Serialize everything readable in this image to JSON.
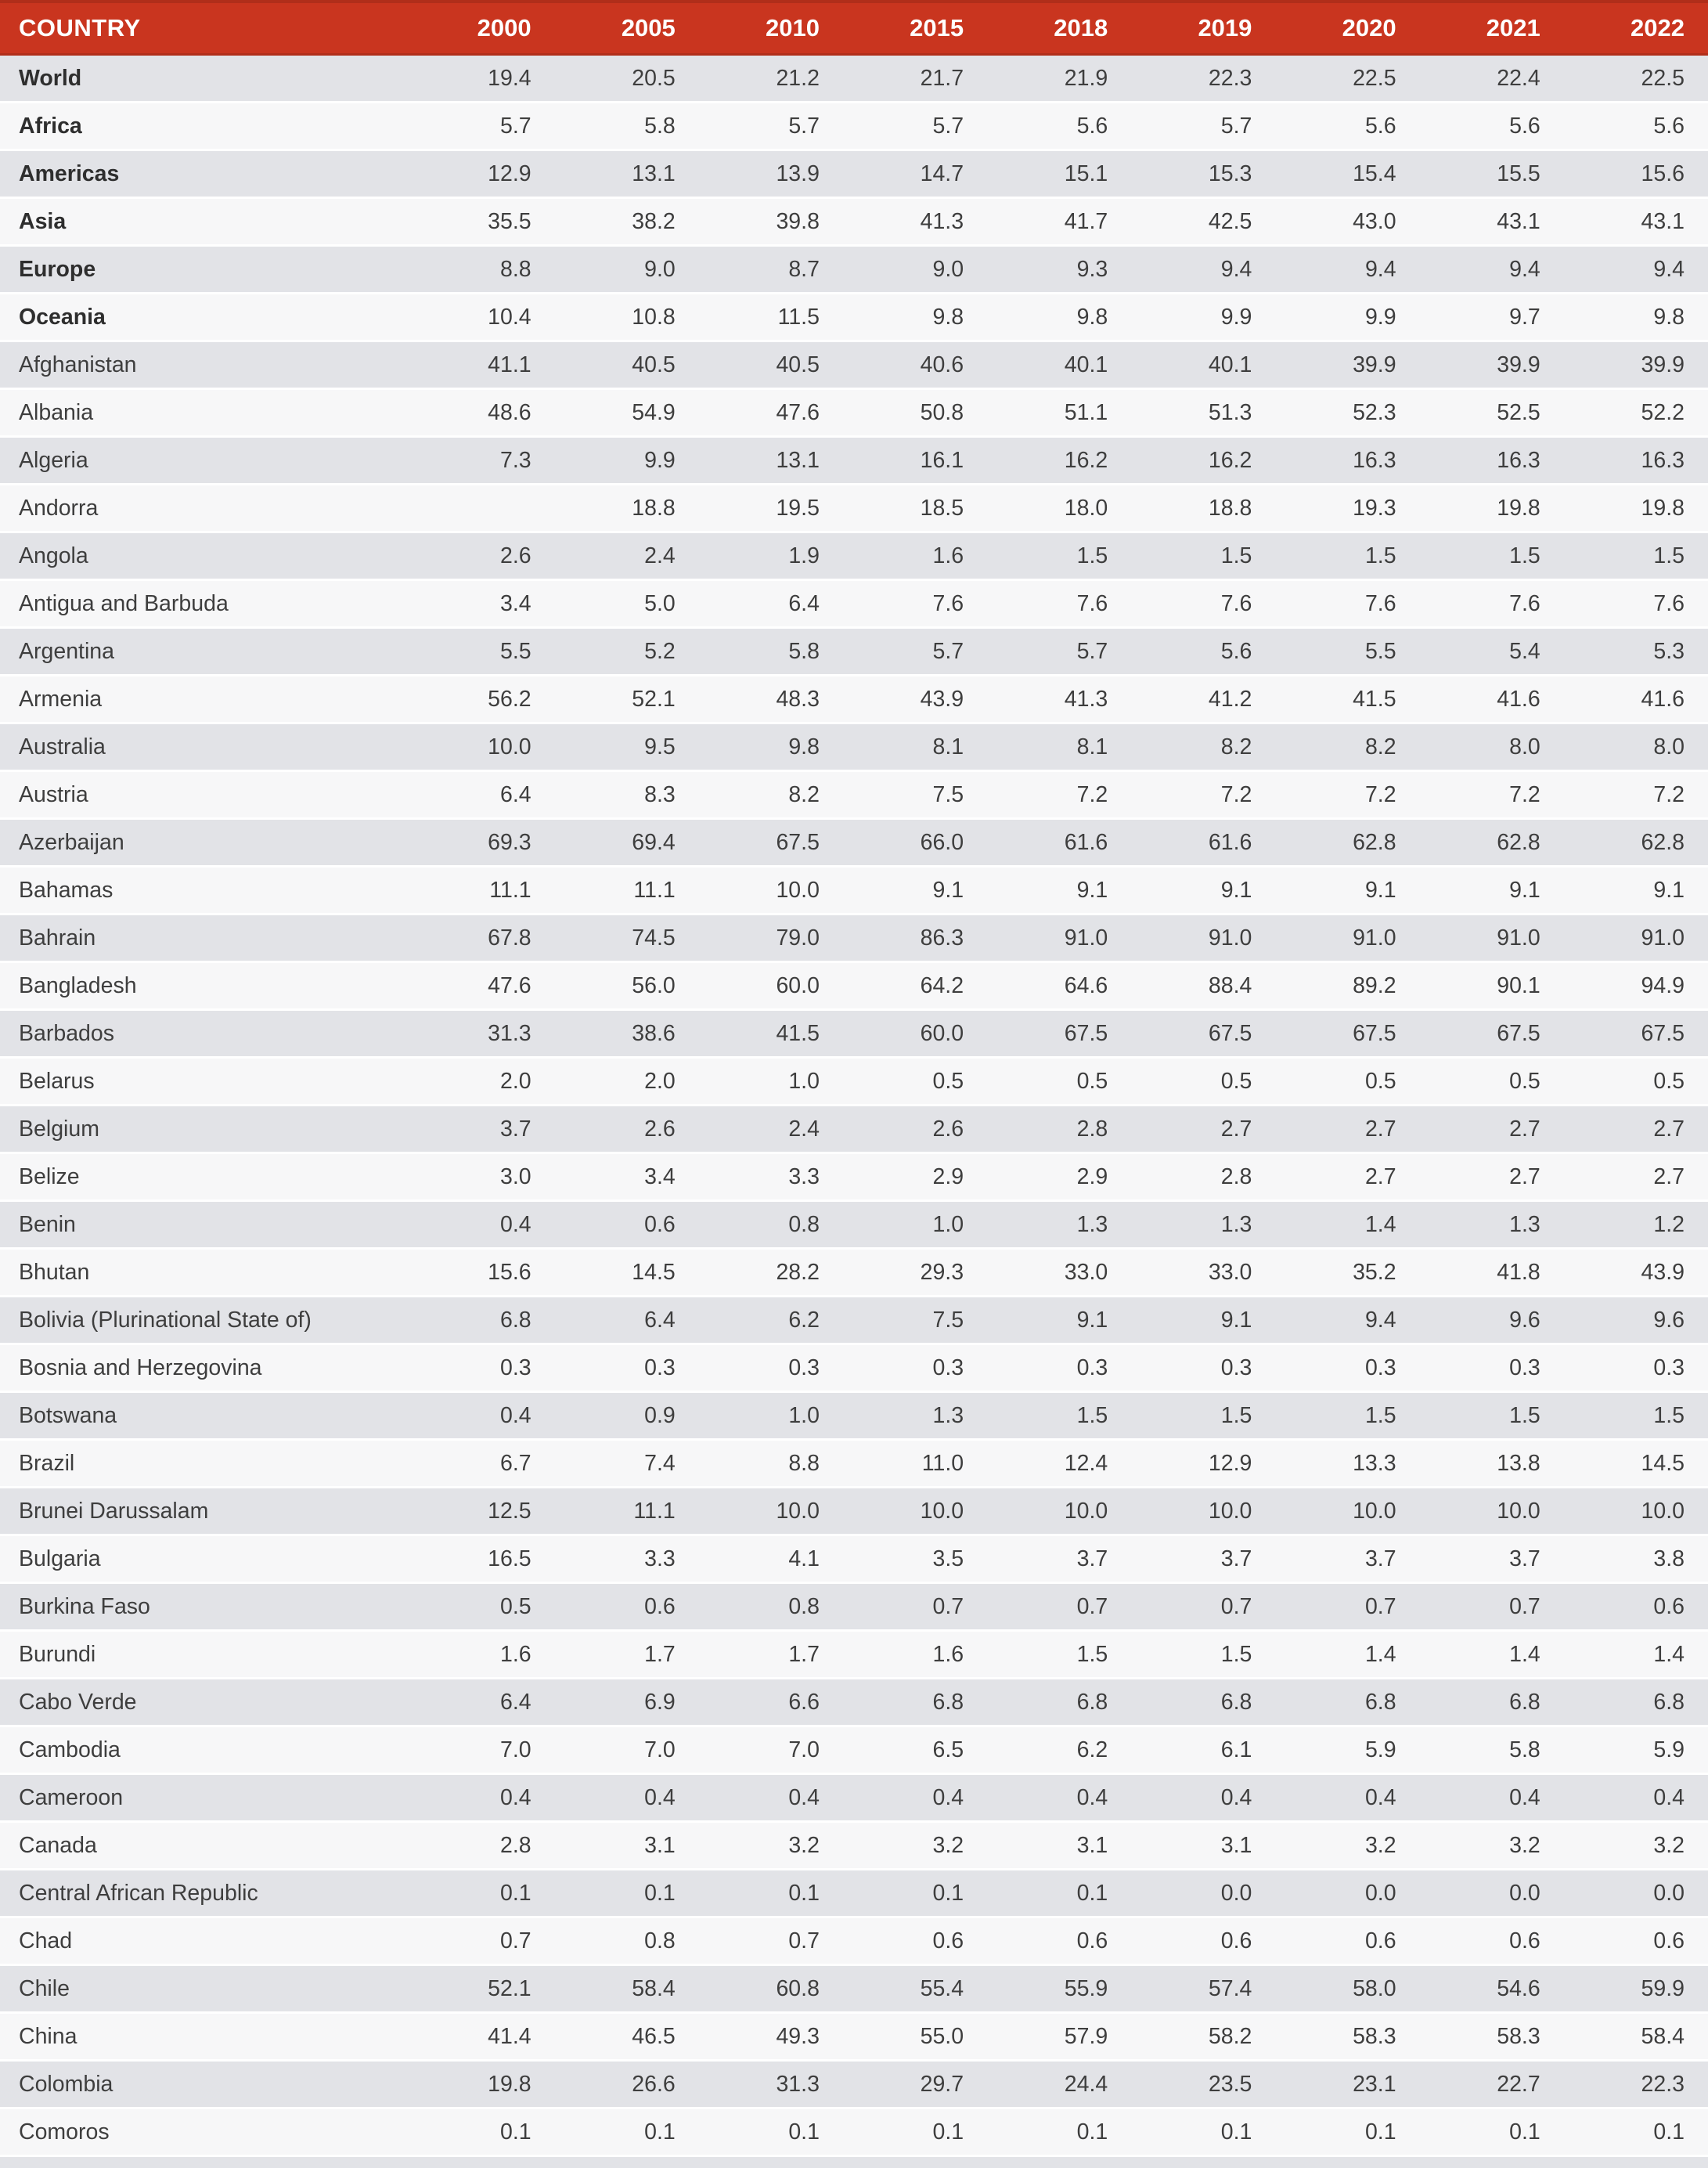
{
  "colors": {
    "header_background": "#C9351F",
    "header_border": "#B02E1A",
    "header_text": "#FFFFFF",
    "row_stripe_dark": "#E2E3E7",
    "row_stripe_light": "#F7F7F8",
    "body_text": "#3E3E3E"
  },
  "table": {
    "country_label": "COUNTRY",
    "years": [
      "2000",
      "2005",
      "2010",
      "2015",
      "2018",
      "2019",
      "2020",
      "2021",
      "2022"
    ],
    "rows": [
      {
        "name": "World",
        "bold": true,
        "values": [
          "19.4",
          "20.5",
          "21.2",
          "21.7",
          "21.9",
          "22.3",
          "22.5",
          "22.4",
          "22.5"
        ]
      },
      {
        "name": "Africa",
        "bold": true,
        "values": [
          "5.7",
          "5.8",
          "5.7",
          "5.7",
          "5.6",
          "5.7",
          "5.6",
          "5.6",
          "5.6"
        ]
      },
      {
        "name": "Americas",
        "bold": true,
        "values": [
          "12.9",
          "13.1",
          "13.9",
          "14.7",
          "15.1",
          "15.3",
          "15.4",
          "15.5",
          "15.6"
        ]
      },
      {
        "name": "Asia",
        "bold": true,
        "values": [
          "35.5",
          "38.2",
          "39.8",
          "41.3",
          "41.7",
          "42.5",
          "43.0",
          "43.1",
          "43.1"
        ]
      },
      {
        "name": "Europe",
        "bold": true,
        "values": [
          "8.8",
          "9.0",
          "8.7",
          "9.0",
          "9.3",
          "9.4",
          "9.4",
          "9.4",
          "9.4"
        ]
      },
      {
        "name": "Oceania",
        "bold": true,
        "values": [
          "10.4",
          "10.8",
          "11.5",
          "9.8",
          "9.8",
          "9.9",
          "9.9",
          "9.7",
          "9.8"
        ]
      },
      {
        "name": "Afghanistan",
        "bold": false,
        "values": [
          "41.1",
          "40.5",
          "40.5",
          "40.6",
          "40.1",
          "40.1",
          "39.9",
          "39.9",
          "39.9"
        ]
      },
      {
        "name": "Albania",
        "bold": false,
        "values": [
          "48.6",
          "54.9",
          "47.6",
          "50.8",
          "51.1",
          "51.3",
          "52.3",
          "52.5",
          "52.2"
        ]
      },
      {
        "name": "Algeria",
        "bold": false,
        "values": [
          "7.3",
          "9.9",
          "13.1",
          "16.1",
          "16.2",
          "16.2",
          "16.3",
          "16.3",
          "16.3"
        ]
      },
      {
        "name": "Andorra",
        "bold": false,
        "values": [
          "",
          "18.8",
          "19.5",
          "18.5",
          "18.0",
          "18.8",
          "19.3",
          "19.8",
          "19.8"
        ]
      },
      {
        "name": "Angola",
        "bold": false,
        "values": [
          "2.6",
          "2.4",
          "1.9",
          "1.6",
          "1.5",
          "1.5",
          "1.5",
          "1.5",
          "1.5"
        ]
      },
      {
        "name": "Antigua and Barbuda",
        "bold": false,
        "values": [
          "3.4",
          "5.0",
          "6.4",
          "7.6",
          "7.6",
          "7.6",
          "7.6",
          "7.6",
          "7.6"
        ]
      },
      {
        "name": "Argentina",
        "bold": false,
        "values": [
          "5.5",
          "5.2",
          "5.8",
          "5.7",
          "5.7",
          "5.6",
          "5.5",
          "5.4",
          "5.3"
        ]
      },
      {
        "name": "Armenia",
        "bold": false,
        "values": [
          "56.2",
          "52.1",
          "48.3",
          "43.9",
          "41.3",
          "41.2",
          "41.5",
          "41.6",
          "41.6"
        ]
      },
      {
        "name": "Australia",
        "bold": false,
        "values": [
          "10.0",
          "9.5",
          "9.8",
          "8.1",
          "8.1",
          "8.2",
          "8.2",
          "8.0",
          "8.0"
        ]
      },
      {
        "name": "Austria",
        "bold": false,
        "values": [
          "6.4",
          "8.3",
          "8.2",
          "7.5",
          "7.2",
          "7.2",
          "7.2",
          "7.2",
          "7.2"
        ]
      },
      {
        "name": "Azerbaijan",
        "bold": false,
        "values": [
          "69.3",
          "69.4",
          "67.5",
          "66.0",
          "61.6",
          "61.6",
          "62.8",
          "62.8",
          "62.8"
        ]
      },
      {
        "name": "Bahamas",
        "bold": false,
        "values": [
          "11.1",
          "11.1",
          "10.0",
          "9.1",
          "9.1",
          "9.1",
          "9.1",
          "9.1",
          "9.1"
        ]
      },
      {
        "name": "Bahrain",
        "bold": false,
        "values": [
          "67.8",
          "74.5",
          "79.0",
          "86.3",
          "91.0",
          "91.0",
          "91.0",
          "91.0",
          "91.0"
        ]
      },
      {
        "name": "Bangladesh",
        "bold": false,
        "values": [
          "47.6",
          "56.0",
          "60.0",
          "64.2",
          "64.6",
          "88.4",
          "89.2",
          "90.1",
          "94.9"
        ]
      },
      {
        "name": "Barbados",
        "bold": false,
        "values": [
          "31.3",
          "38.6",
          "41.5",
          "60.0",
          "67.5",
          "67.5",
          "67.5",
          "67.5",
          "67.5"
        ]
      },
      {
        "name": "Belarus",
        "bold": false,
        "values": [
          "2.0",
          "2.0",
          "1.0",
          "0.5",
          "0.5",
          "0.5",
          "0.5",
          "0.5",
          "0.5"
        ]
      },
      {
        "name": "Belgium",
        "bold": false,
        "values": [
          "3.7",
          "2.6",
          "2.4",
          "2.6",
          "2.8",
          "2.7",
          "2.7",
          "2.7",
          "2.7"
        ]
      },
      {
        "name": "Belize",
        "bold": false,
        "values": [
          "3.0",
          "3.4",
          "3.3",
          "2.9",
          "2.9",
          "2.8",
          "2.7",
          "2.7",
          "2.7"
        ]
      },
      {
        "name": "Benin",
        "bold": false,
        "values": [
          "0.4",
          "0.6",
          "0.8",
          "1.0",
          "1.3",
          "1.3",
          "1.4",
          "1.3",
          "1.2"
        ]
      },
      {
        "name": "Bhutan",
        "bold": false,
        "values": [
          "15.6",
          "14.5",
          "28.2",
          "29.3",
          "33.0",
          "33.0",
          "35.2",
          "41.8",
          "43.9"
        ]
      },
      {
        "name": "Bolivia (Plurinational State of)",
        "bold": false,
        "values": [
          "6.8",
          "6.4",
          "6.2",
          "7.5",
          "9.1",
          "9.1",
          "9.4",
          "9.6",
          "9.6"
        ]
      },
      {
        "name": "Bosnia and Herzegovina",
        "bold": false,
        "values": [
          "0.3",
          "0.3",
          "0.3",
          "0.3",
          "0.3",
          "0.3",
          "0.3",
          "0.3",
          "0.3"
        ]
      },
      {
        "name": "Botswana",
        "bold": false,
        "values": [
          "0.4",
          "0.9",
          "1.0",
          "1.3",
          "1.5",
          "1.5",
          "1.5",
          "1.5",
          "1.5"
        ]
      },
      {
        "name": "Brazil",
        "bold": false,
        "values": [
          "6.7",
          "7.4",
          "8.8",
          "11.0",
          "12.4",
          "12.9",
          "13.3",
          "13.8",
          "14.5"
        ]
      },
      {
        "name": "Brunei Darussalam",
        "bold": false,
        "values": [
          "12.5",
          "11.1",
          "10.0",
          "10.0",
          "10.0",
          "10.0",
          "10.0",
          "10.0",
          "10.0"
        ]
      },
      {
        "name": "Bulgaria",
        "bold": false,
        "values": [
          "16.5",
          "3.3",
          "4.1",
          "3.5",
          "3.7",
          "3.7",
          "3.7",
          "3.7",
          "3.8"
        ]
      },
      {
        "name": "Burkina Faso",
        "bold": false,
        "values": [
          "0.5",
          "0.6",
          "0.8",
          "0.7",
          "0.7",
          "0.7",
          "0.7",
          "0.7",
          "0.6"
        ]
      },
      {
        "name": "Burundi",
        "bold": false,
        "values": [
          "1.6",
          "1.7",
          "1.7",
          "1.6",
          "1.5",
          "1.5",
          "1.4",
          "1.4",
          "1.4"
        ]
      },
      {
        "name": "Cabo Verde",
        "bold": false,
        "values": [
          "6.4",
          "6.9",
          "6.6",
          "6.8",
          "6.8",
          "6.8",
          "6.8",
          "6.8",
          "6.8"
        ]
      },
      {
        "name": "Cambodia",
        "bold": false,
        "values": [
          "7.0",
          "7.0",
          "7.0",
          "6.5",
          "6.2",
          "6.1",
          "5.9",
          "5.8",
          "5.9"
        ]
      },
      {
        "name": "Cameroon",
        "bold": false,
        "values": [
          "0.4",
          "0.4",
          "0.4",
          "0.4",
          "0.4",
          "0.4",
          "0.4",
          "0.4",
          "0.4"
        ]
      },
      {
        "name": "Canada",
        "bold": false,
        "values": [
          "2.8",
          "3.1",
          "3.2",
          "3.2",
          "3.1",
          "3.1",
          "3.2",
          "3.2",
          "3.2"
        ]
      },
      {
        "name": "Central African Republic",
        "bold": false,
        "values": [
          "0.1",
          "0.1",
          "0.1",
          "0.1",
          "0.1",
          "0.0",
          "0.0",
          "0.0",
          "0.0"
        ]
      },
      {
        "name": "Chad",
        "bold": false,
        "values": [
          "0.7",
          "0.8",
          "0.7",
          "0.6",
          "0.6",
          "0.6",
          "0.6",
          "0.6",
          "0.6"
        ]
      },
      {
        "name": "Chile",
        "bold": false,
        "values": [
          "52.1",
          "58.4",
          "60.8",
          "55.4",
          "55.9",
          "57.4",
          "58.0",
          "54.6",
          "59.9"
        ]
      },
      {
        "name": "China",
        "bold": false,
        "values": [
          "41.4",
          "46.5",
          "49.3",
          "55.0",
          "57.9",
          "58.2",
          "58.3",
          "58.3",
          "58.4"
        ]
      },
      {
        "name": "Colombia",
        "bold": false,
        "values": [
          "19.8",
          "26.6",
          "31.3",
          "29.7",
          "24.4",
          "23.5",
          "23.1",
          "22.7",
          "22.3"
        ]
      },
      {
        "name": "Comoros",
        "bold": false,
        "values": [
          "0.1",
          "0.1",
          "0.1",
          "0.1",
          "0.1",
          "0.1",
          "0.1",
          "0.1",
          "0.1"
        ]
      }
    ]
  }
}
